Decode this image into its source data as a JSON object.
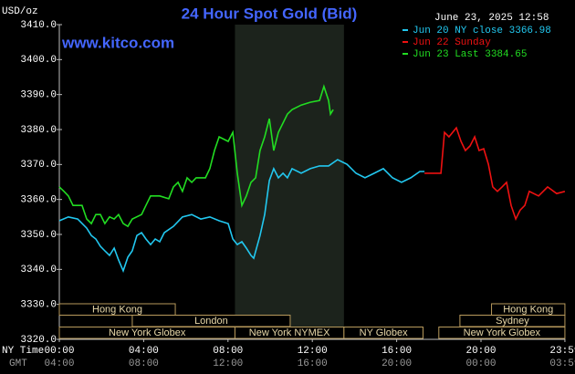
{
  "chart_data": {
    "type": "line",
    "title": "24 Hour Spot Gold (Bid)",
    "site": "www.kitco.com",
    "timestamp": "June 23, 2025 12:58",
    "y_label": "USD/oz",
    "x_label": "NY Time",
    "x2_label": "GMT",
    "xlim": [
      0,
      24
    ],
    "ylim": [
      3320,
      3410
    ],
    "xticks": [
      {
        "value": 0,
        "label": "00:00"
      },
      {
        "value": 4,
        "label": "04:00"
      },
      {
        "value": 8,
        "label": "08:00"
      },
      {
        "value": 12,
        "label": "12:00"
      },
      {
        "value": 16,
        "label": "16:00"
      },
      {
        "value": 20,
        "label": "20:00"
      },
      {
        "value": 23.98,
        "label": "23:59"
      }
    ],
    "x2ticks": [
      {
        "value": 0,
        "label": "04:00"
      },
      {
        "value": 4,
        "label": "08:00"
      },
      {
        "value": 8,
        "label": "12:00"
      },
      {
        "value": 12,
        "label": "16:00"
      },
      {
        "value": 16,
        "label": "20:00"
      },
      {
        "value": 20,
        "label": "00:00"
      },
      {
        "value": 23.98,
        "label": "03:59"
      }
    ],
    "yticks": [
      {
        "value": 3410,
        "label": "3410.0"
      },
      {
        "value": 3400,
        "label": "3400.0"
      },
      {
        "value": 3390,
        "label": "3390.0"
      },
      {
        "value": 3380,
        "label": "3380.0"
      },
      {
        "value": 3370,
        "label": "3370.0"
      },
      {
        "value": 3360,
        "label": "3360.0"
      },
      {
        "value": 3350,
        "label": "3350.0"
      },
      {
        "value": 3340,
        "label": "3340.0"
      },
      {
        "value": 3330,
        "label": "3330.0"
      },
      {
        "value": 3320,
        "label": "3320.0"
      }
    ],
    "grid": false,
    "sessions": [
      {
        "label": "Hong Kong",
        "start": 0,
        "end": 5.5
      },
      {
        "label": "London",
        "start": 3.46,
        "end": 10.95
      },
      {
        "label": "New York Globex",
        "start": 0,
        "end": 8.33
      },
      {
        "label": "New York NYMEX",
        "start": 8.33,
        "end": 13.5
      },
      {
        "label": "NY Globex",
        "start": 13.5,
        "end": 17.25
      },
      {
        "label": "Sydney",
        "start": 19,
        "end": 23.98
      },
      {
        "label": "Hong Kong",
        "start": 20.5,
        "end": 23.98
      },
      {
        "label": "New York Globex",
        "start": 18,
        "end": 23.98
      }
    ],
    "series": [
      {
        "name": "Jun 20 NY close 3366.98",
        "color": "#22c8f0",
        "x": [
          0,
          0.43,
          0.87,
          1.3,
          1.52,
          1.73,
          1.95,
          2.16,
          2.38,
          2.6,
          2.81,
          3.03,
          3.25,
          3.46,
          3.68,
          3.9,
          4.11,
          4.33,
          4.55,
          4.76,
          4.98,
          5.41,
          5.84,
          6.28,
          6.71,
          7.14,
          7.58,
          8.01,
          8.23,
          8.44,
          8.66,
          8.87,
          9.09,
          9.22,
          9.52,
          9.74,
          9.96,
          10.17,
          10.39,
          10.61,
          10.82,
          11.04,
          11.47,
          11.9,
          12.34,
          12.77,
          13.2,
          13.64,
          14.07,
          14.5,
          14.94,
          15.37,
          15.8,
          16.23,
          16.67,
          17.1,
          17.32
        ],
        "values": [
          3353.9,
          3355.0,
          3354.4,
          3351.8,
          3349.7,
          3348.7,
          3346.6,
          3345.3,
          3344.0,
          3346.1,
          3342.7,
          3339.6,
          3343.5,
          3345.3,
          3349.7,
          3350.5,
          3348.7,
          3347.1,
          3348.7,
          3347.9,
          3350.5,
          3352.3,
          3355.0,
          3355.7,
          3354.4,
          3355.0,
          3353.9,
          3353.1,
          3348.7,
          3347.1,
          3347.9,
          3346.1,
          3344.0,
          3343.2,
          3349.7,
          3355.7,
          3365.4,
          3368.8,
          3366.2,
          3367.5,
          3366.2,
          3368.8,
          3367.5,
          3368.8,
          3369.6,
          3369.6,
          3371.4,
          3370.1,
          3367.5,
          3366.2,
          3367.5,
          3368.8,
          3366.2,
          3364.9,
          3366.2,
          3368.0,
          3368.0
        ]
      },
      {
        "name": "Jun 22 Sunday",
        "color": "#ee1111",
        "x": [
          17.32,
          18.1,
          18.27,
          18.48,
          18.83,
          19.05,
          19.26,
          19.48,
          19.7,
          19.91,
          20.13,
          20.35,
          20.56,
          20.78,
          21.0,
          21.21,
          21.43,
          21.65,
          21.86,
          22.08,
          22.29,
          22.73,
          23.16,
          23.59,
          23.98
        ],
        "values": [
          3367.5,
          3367.5,
          3379.2,
          3377.9,
          3380.5,
          3376.6,
          3374.0,
          3375.3,
          3377.9,
          3374.0,
          3374.5,
          3370.1,
          3363.6,
          3362.3,
          3363.6,
          3364.9,
          3358.3,
          3354.4,
          3357.0,
          3358.3,
          3362.3,
          3361.0,
          3363.6,
          3361.7,
          3362.3
        ]
      },
      {
        "name": "Jun 23 Last 3384.65",
        "color": "#22dd22",
        "x": [
          0,
          0.22,
          0.43,
          0.65,
          1.08,
          1.3,
          1.52,
          1.73,
          1.95,
          2.16,
          2.38,
          2.6,
          2.81,
          3.03,
          3.25,
          3.46,
          3.9,
          4.11,
          4.33,
          4.76,
          5.19,
          5.41,
          5.63,
          5.84,
          6.06,
          6.28,
          6.49,
          6.93,
          7.14,
          7.36,
          7.58,
          8.01,
          8.23,
          8.44,
          8.66,
          8.87,
          9.09,
          9.31,
          9.52,
          9.74,
          9.96,
          10.17,
          10.39,
          10.82,
          11.04,
          11.47,
          11.9,
          12.34,
          12.55,
          12.77,
          12.86,
          12.99
        ],
        "values": [
          3363.6,
          3362.3,
          3361.0,
          3358.3,
          3358.3,
          3354.4,
          3353.1,
          3355.7,
          3355.7,
          3353.1,
          3355.0,
          3354.4,
          3355.7,
          3353.1,
          3352.3,
          3354.4,
          3355.7,
          3358.3,
          3361.0,
          3361.0,
          3360.2,
          3363.6,
          3364.9,
          3362.3,
          3366.2,
          3364.9,
          3366.2,
          3366.2,
          3368.8,
          3374.0,
          3377.9,
          3376.6,
          3379.2,
          3367.5,
          3358.3,
          3361.0,
          3364.9,
          3366.2,
          3374.0,
          3377.9,
          3383.1,
          3374.0,
          3379.2,
          3384.4,
          3385.7,
          3387.0,
          3387.8,
          3388.3,
          3392.3,
          3388.3,
          3384.4,
          3385.7
        ]
      }
    ]
  }
}
